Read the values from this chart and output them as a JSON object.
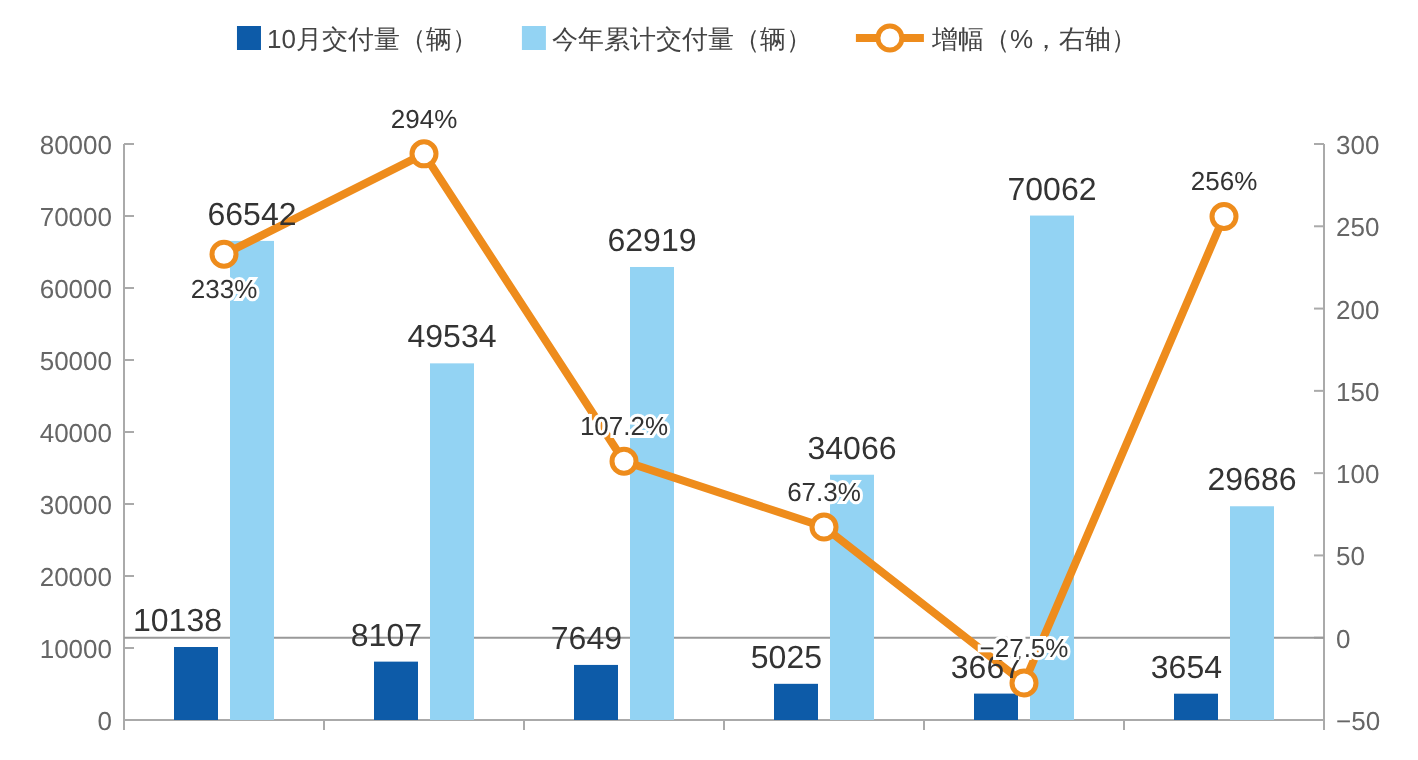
{
  "chart_data": {
    "type": "bar",
    "categories": [
      null,
      null,
      null,
      null,
      null,
      null
    ],
    "series": [
      {
        "name": "10月交付量（辆）",
        "color": "#0d5ba8",
        "values": [
          10138,
          8107,
          7649,
          5025,
          3667,
          3654
        ]
      },
      {
        "name": "今年累计交付量（辆）",
        "color": "#93d3f3",
        "values": [
          66542,
          49534,
          62919,
          34066,
          70062,
          29686
        ]
      },
      {
        "name": "增幅（%，右轴）",
        "type": "line",
        "axis": "y2",
        "color": "#ee8c1c",
        "marker": "circle",
        "values": [
          233,
          294,
          107.2,
          67.3,
          -27.5,
          256
        ],
        "value_labels": [
          "233%",
          "294%",
          "107.2%",
          "67.3%",
          "−27.5%",
          "256%"
        ]
      }
    ],
    "data_labels": true,
    "ylim": [
      0,
      80000
    ],
    "yticks": [
      0,
      10000,
      20000,
      30000,
      40000,
      50000,
      60000,
      70000,
      80000
    ],
    "y2lim": [
      -50,
      300
    ],
    "y2ticks": [
      -50,
      0,
      50,
      100,
      150,
      200,
      250,
      300
    ],
    "ref_lines": [
      {
        "axis": "y2",
        "value": 0,
        "color": "#999999"
      }
    ],
    "grid": false,
    "legend": "top"
  }
}
